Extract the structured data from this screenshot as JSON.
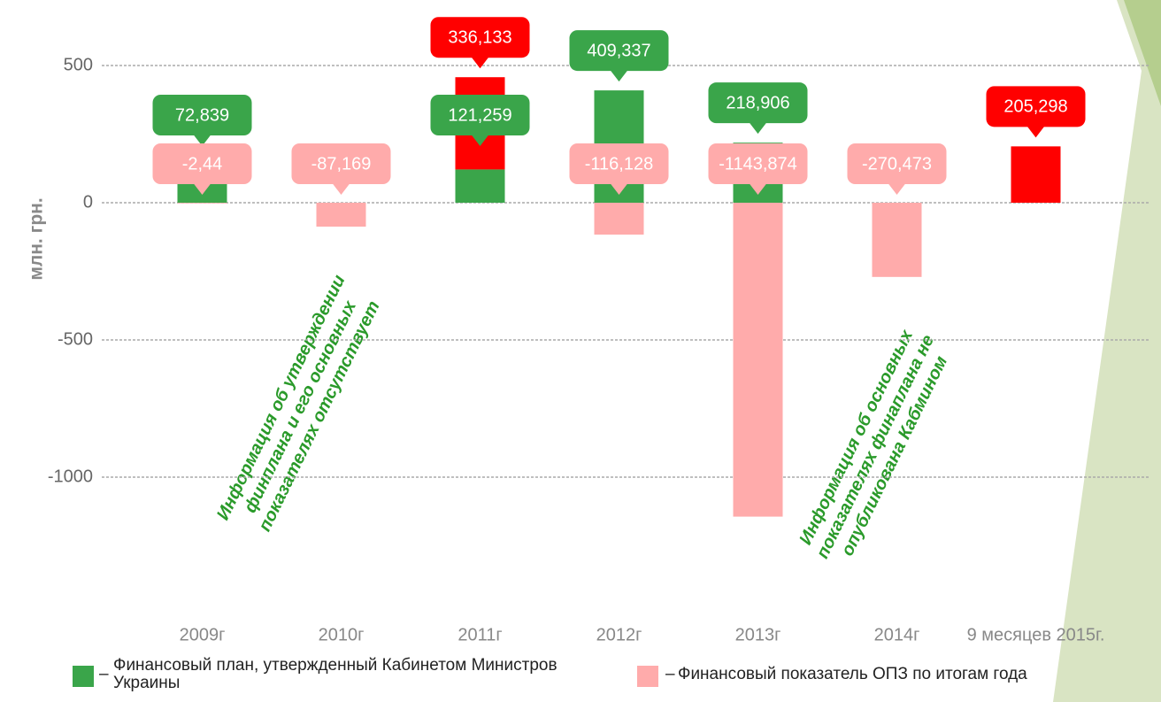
{
  "chart_data": {
    "type": "bar",
    "y_label": "млн. грн.",
    "categories": [
      "2009г",
      "2010г",
      "2011г",
      "2012г",
      "2013г",
      "2014г",
      "9 месяцев 2015г."
    ],
    "series": [
      {
        "name": "Финансовый план, утвержденный Кабинетом Министров Украины",
        "color": "#3aa54a",
        "values": [
          72.839,
          null,
          121.259,
          409.337,
          218.906,
          null,
          null
        ],
        "value_labels": [
          "72,839",
          null,
          "121,259",
          "409,337",
          "218,906",
          null,
          null
        ]
      },
      {
        "name": "Финансовый показатель ОПЗ по итогам года",
        "color": "#ffabab",
        "values": [
          -2.44,
          -87.169,
          null,
          -116.128,
          -1143.874,
          -270.473,
          null
        ],
        "value_labels": [
          "-2,44",
          "-87,169",
          null,
          "-116,128",
          "-1143,874",
          "-270,473",
          null
        ]
      },
      {
        "color": "#ff0000",
        "values": [
          null,
          null,
          336.133,
          null,
          null,
          null,
          205.298
        ],
        "value_labels": [
          null,
          null,
          "336,133",
          null,
          null,
          null,
          "205,298"
        ]
      }
    ],
    "ylim": [
      -1500,
      600
    ],
    "yticks": [
      -1000,
      -500,
      0,
      500
    ],
    "grid": true,
    "annotations": [
      {
        "lines": [
          "Информация об утверждении",
          "финплана и его основных",
          "показателях отсутствует"
        ]
      },
      {
        "lines": [
          "Информация об основных",
          "показателях финаплана не",
          "опубликована Кабмином"
        ]
      }
    ]
  }
}
